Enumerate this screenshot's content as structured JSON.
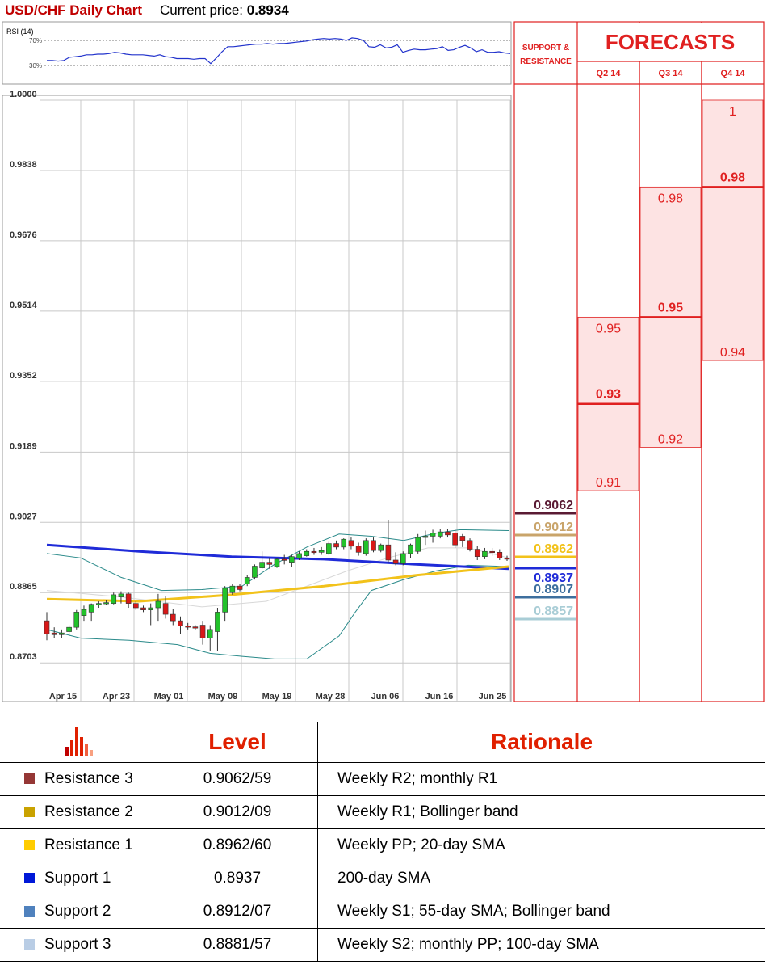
{
  "header": {
    "title": "USD/CHF Daily Chart",
    "current_price_label": "Current price:",
    "current_price": "0.8934"
  },
  "rsi": {
    "label": "RSI (14)",
    "level_high": "70%",
    "level_low": "30%",
    "values": [
      38,
      38,
      37,
      38,
      43,
      44,
      45,
      47,
      47,
      48,
      48,
      49,
      51,
      50,
      48,
      47,
      47,
      47,
      46,
      45,
      47,
      44,
      43,
      41,
      41,
      41,
      40,
      41,
      41,
      33,
      42,
      52,
      60,
      60,
      61,
      62,
      63,
      64,
      64,
      65,
      64,
      65,
      65,
      66,
      67,
      68,
      69,
      71,
      72,
      73,
      72,
      73,
      72,
      70,
      74,
      73,
      70,
      60,
      59,
      63,
      58,
      59,
      63,
      51,
      54,
      56,
      55,
      55,
      56,
      57,
      60,
      54,
      55,
      59,
      62,
      58,
      52,
      55,
      51,
      51,
      52,
      50,
      49
    ]
  },
  "chart_data": {
    "type": "candlestick",
    "title": "USD/CHF Daily Chart",
    "y_ticks": [
      "1.0000",
      "0.9838",
      "0.9676",
      "0.9514",
      "0.9352",
      "0.9189",
      "0.9027",
      "0.8865",
      "0.8703"
    ],
    "ylim": [
      0.8681,
      1.0
    ],
    "x_ticks": [
      "Apr 15",
      "Apr 23",
      "May 01",
      "May 09",
      "May 19",
      "May 28",
      "Jun 06",
      "Jun 16",
      "Jun 25"
    ],
    "grid": true,
    "candles": [
      [
        0.88,
        0.882,
        0.8755,
        0.877
      ],
      [
        0.8772,
        0.8785,
        0.876,
        0.8768
      ],
      [
        0.8768,
        0.878,
        0.876,
        0.8772
      ],
      [
        0.8775,
        0.879,
        0.8765,
        0.8785
      ],
      [
        0.8785,
        0.8825,
        0.878,
        0.882
      ],
      [
        0.8812,
        0.8835,
        0.88,
        0.8826
      ],
      [
        0.882,
        0.884,
        0.88,
        0.8838
      ],
      [
        0.8838,
        0.8845,
        0.883,
        0.884
      ],
      [
        0.884,
        0.8848,
        0.8836,
        0.8842
      ],
      [
        0.884,
        0.8865,
        0.8838,
        0.886
      ],
      [
        0.8855,
        0.8868,
        0.884,
        0.8862
      ],
      [
        0.8862,
        0.8865,
        0.883,
        0.884
      ],
      [
        0.884,
        0.8845,
        0.8825,
        0.883
      ],
      [
        0.883,
        0.8835,
        0.882,
        0.8825
      ],
      [
        0.8825,
        0.884,
        0.879,
        0.883
      ],
      [
        0.883,
        0.8862,
        0.88,
        0.8845
      ],
      [
        0.884,
        0.8856,
        0.8805,
        0.8815
      ],
      [
        0.8815,
        0.8828,
        0.879,
        0.88
      ],
      [
        0.88,
        0.881,
        0.877,
        0.8788
      ],
      [
        0.8788,
        0.8795,
        0.878,
        0.8786
      ],
      [
        0.8786,
        0.879,
        0.878,
        0.8785
      ],
      [
        0.879,
        0.88,
        0.8745,
        0.876
      ],
      [
        0.876,
        0.879,
        0.873,
        0.878
      ],
      [
        0.8775,
        0.883,
        0.873,
        0.882
      ],
      [
        0.882,
        0.888,
        0.88,
        0.8875
      ],
      [
        0.8865,
        0.8885,
        0.886,
        0.888
      ],
      [
        0.888,
        0.8885,
        0.8868,
        0.8872
      ],
      [
        0.8885,
        0.8905,
        0.888,
        0.89
      ],
      [
        0.89,
        0.893,
        0.8895,
        0.8926
      ],
      [
        0.8922,
        0.896,
        0.892,
        0.8935
      ],
      [
        0.8935,
        0.8945,
        0.892,
        0.893
      ],
      [
        0.8925,
        0.8945,
        0.8922,
        0.8942
      ],
      [
        0.8942,
        0.8952,
        0.893,
        0.894
      ],
      [
        0.8935,
        0.8952,
        0.8925,
        0.8948
      ],
      [
        0.8945,
        0.896,
        0.894,
        0.8955
      ],
      [
        0.895,
        0.8965,
        0.8948,
        0.896
      ],
      [
        0.896,
        0.8968,
        0.8952,
        0.8958
      ],
      [
        0.8958,
        0.897,
        0.8952,
        0.8962
      ],
      [
        0.8955,
        0.8982,
        0.8952,
        0.8978
      ],
      [
        0.8978,
        0.8985,
        0.8965,
        0.897
      ],
      [
        0.897,
        0.899,
        0.8965,
        0.8988
      ],
      [
        0.8985,
        0.8992,
        0.8965,
        0.8972
      ],
      [
        0.8972,
        0.898,
        0.895,
        0.8958
      ],
      [
        0.8955,
        0.899,
        0.895,
        0.8985
      ],
      [
        0.8985,
        0.8992,
        0.8958,
        0.8962
      ],
      [
        0.8962,
        0.8978,
        0.8958,
        0.8975
      ],
      [
        0.8975,
        0.9032,
        0.8935,
        0.894
      ],
      [
        0.894,
        0.8958,
        0.8928,
        0.8932
      ],
      [
        0.8932,
        0.896,
        0.8928,
        0.8955
      ],
      [
        0.8955,
        0.8978,
        0.8945,
        0.8975
      ],
      [
        0.896,
        0.9,
        0.8955,
        0.8992
      ],
      [
        0.8992,
        0.9008,
        0.8975,
        0.8995
      ],
      [
        0.8995,
        0.901,
        0.898,
        0.9002
      ],
      [
        0.8995,
        0.9012,
        0.899,
        0.9005
      ],
      [
        0.9005,
        0.9012,
        0.8992,
        0.8998
      ],
      [
        0.9002,
        0.901,
        0.8968,
        0.8975
      ],
      [
        0.8995,
        0.9,
        0.897,
        0.8985
      ],
      [
        0.8985,
        0.899,
        0.896,
        0.8965
      ],
      [
        0.8965,
        0.8972,
        0.894,
        0.8948
      ],
      [
        0.8948,
        0.8968,
        0.8942,
        0.896
      ],
      [
        0.896,
        0.8968,
        0.895,
        0.8958
      ],
      [
        0.8958,
        0.8965,
        0.894,
        0.8945
      ],
      [
        0.8945,
        0.895,
        0.8938,
        0.8942
      ]
    ],
    "sma20": [
      0.8888,
      0.888,
      0.887,
      0.886,
      0.885,
      0.8848
    ],
    "moving_averages": [
      {
        "color": "#1f2bd8",
        "values": [
          0.8975,
          0.896,
          0.8948,
          0.8942,
          0.893,
          0.892
        ]
      },
      {
        "color": "#f2c21a",
        "values": [
          0.885,
          0.8845,
          0.886,
          0.888,
          0.8905,
          0.8925
        ]
      }
    ]
  },
  "support_resistance": {
    "title_line1": "SUPPORT &",
    "title_line2": "RESISTANCE",
    "levels": [
      {
        "value": "0.9062",
        "color": "#5a1a33"
      },
      {
        "value": "0.9012",
        "color": "#c9a46a"
      },
      {
        "value": "0.8962",
        "color": "#f2c21a"
      },
      {
        "value": "0.8937",
        "color": "#1f2bd8"
      },
      {
        "value": "0.8907",
        "color": "#3d6f9e"
      },
      {
        "value": "0.8857",
        "color": "#a9cdd6"
      }
    ]
  },
  "forecasts": {
    "title": "FORECASTS",
    "columns": [
      {
        "label": "Q2 14",
        "high": "0.95",
        "mid": "0.93",
        "low": "0.91",
        "high_v": 0.95,
        "mid_v": 0.93,
        "low_v": 0.91
      },
      {
        "label": "Q3 14",
        "high": "0.98",
        "mid": "0.95",
        "low": "0.92",
        "high_v": 0.98,
        "mid_v": 0.95,
        "low_v": 0.92
      },
      {
        "label": "Q4 14",
        "high": "1",
        "mid": "0.98",
        "low": "0.94",
        "high_v": 1.0,
        "mid_v": 0.98,
        "low_v": 0.94
      }
    ]
  },
  "levels_table": {
    "headers": [
      "Level",
      "Rationale"
    ],
    "rows": [
      {
        "name": "Resistance 3",
        "level": "0.9062/59",
        "rationale": "Weekly R2; monthly R1",
        "color": "#953735"
      },
      {
        "name": "Resistance 2",
        "level": "0.9012/09",
        "rationale": "Weekly R1; Bollinger band",
        "color": "#c9a200"
      },
      {
        "name": "Resistance 1",
        "level": "0.8962/60",
        "rationale": "Weekly PP; 20-day SMA",
        "color": "#ffcc00"
      },
      {
        "name": "Support 1",
        "level": "0.8937",
        "rationale": "200-day SMA",
        "color": "#0018d8"
      },
      {
        "name": "Support 2",
        "level": "0.8912/07",
        "rationale": "Weekly S1; 55-day SMA; Bollinger band",
        "color": "#4f81bd"
      },
      {
        "name": "Support 3",
        "level": "0.8881/57",
        "rationale": "Weekly S2; monthly PP; 100-day SMA",
        "color": "#b9cde5"
      }
    ]
  }
}
